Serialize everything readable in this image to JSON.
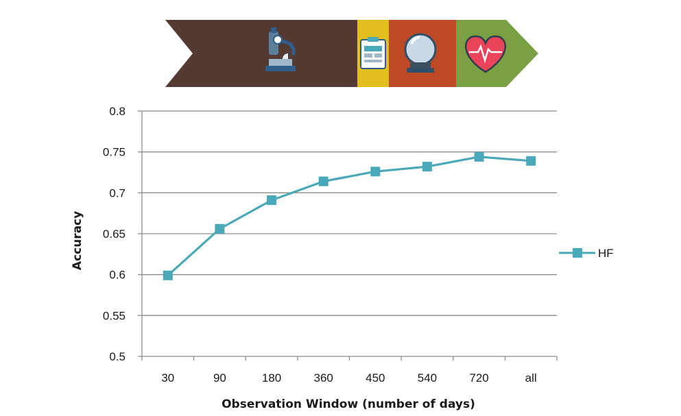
{
  "banner": {
    "segments": [
      {
        "name": "microscope",
        "color": "#553a33",
        "icon": "microscope-icon"
      },
      {
        "name": "clipboard",
        "color": "#e2be1e",
        "icon": "clipboard-icon"
      },
      {
        "name": "crystal-ball",
        "color": "#bd4a24",
        "icon": "crystal-ball-icon"
      },
      {
        "name": "heart",
        "color": "#79a043",
        "icon": "heartbeat-icon"
      }
    ]
  },
  "colors": {
    "series": "#4aa9b9",
    "grid": "#8c8c8c",
    "axis": "#8c8c8c"
  },
  "chart_data": {
    "type": "line",
    "title": "",
    "xlabel": "Observation Window (number of days)",
    "ylabel": "Accuracy",
    "categories": [
      "30",
      "90",
      "180",
      "360",
      "450",
      "540",
      "720",
      "all"
    ],
    "series": [
      {
        "name": "HF",
        "values": [
          0.599,
          0.656,
          0.691,
          0.714,
          0.726,
          0.732,
          0.744,
          0.739
        ]
      }
    ],
    "ylim": [
      0.5,
      0.8
    ],
    "yticks": [
      "0.5",
      "0.55",
      "0.6",
      "0.65",
      "0.7",
      "0.75",
      "0.8"
    ],
    "grid": true,
    "legend": "right"
  }
}
